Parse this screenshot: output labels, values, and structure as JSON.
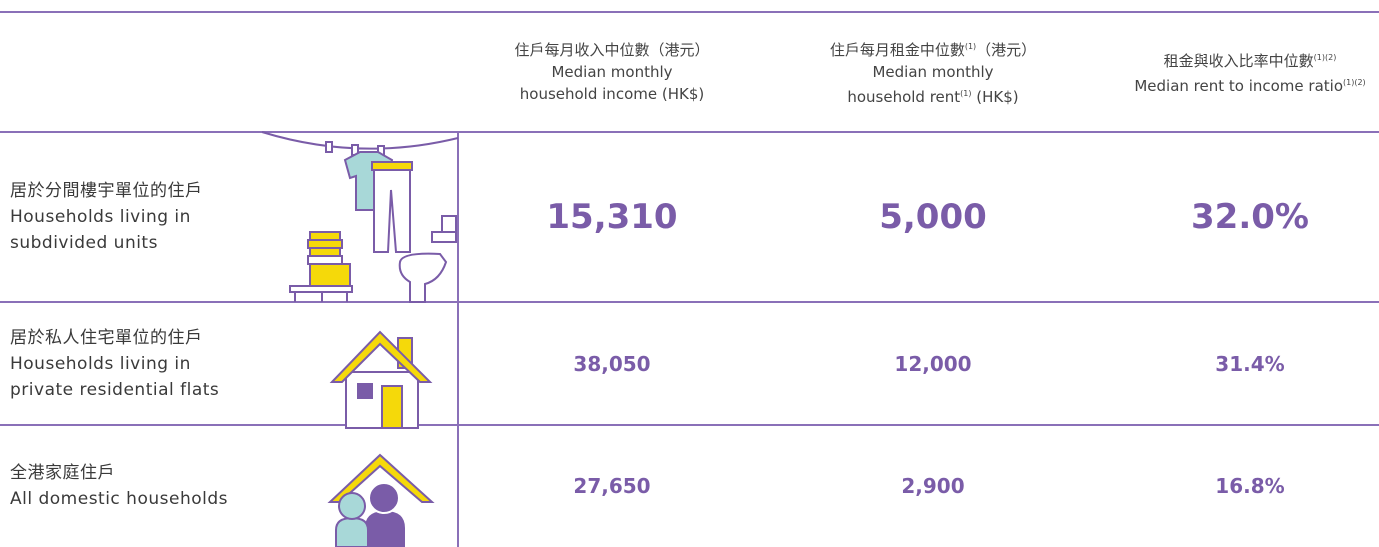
{
  "header": {
    "columns": [
      {
        "lines": [
          [
            {
              "text": "住戶每月收入中位數（港元）"
            }
          ],
          [
            {
              "text": "Median monthly"
            }
          ],
          [
            {
              "text": "household income (HK$)"
            }
          ]
        ]
      },
      {
        "lines": [
          [
            {
              "text": "住戶每月租金中位數"
            },
            {
              "text": "(1)",
              "sup": true
            },
            {
              "text": "（港元）"
            }
          ],
          [
            {
              "text": "Median monthly"
            }
          ],
          [
            {
              "text": "household rent"
            },
            {
              "text": "(1)",
              "sup": true
            },
            {
              "text": " (HK$)"
            }
          ]
        ]
      },
      {
        "lines": [
          [
            {
              "text": "租金與收入比率中位數"
            },
            {
              "text": "(1)(2)",
              "sup": true
            }
          ],
          [
            {
              "text": "Median rent to income ratio"
            },
            {
              "text": "(1)(2)",
              "sup": true
            }
          ]
        ]
      }
    ]
  },
  "rows": [
    {
      "lines": [
        "居於分間樓宇單位的住戶",
        "Households living in",
        "subdivided units"
      ],
      "values": [
        "15,310",
        "5,000",
        "32.0%"
      ],
      "highlight": true
    },
    {
      "lines": [
        "居於私人住宅單位的住戶",
        "Households living in",
        "private residential flats"
      ],
      "values": [
        "38,050",
        "12,000",
        "31.4%"
      ],
      "highlight": false
    },
    {
      "lines": [
        "全港家庭住戶",
        "All domestic households"
      ],
      "values": [
        "27,650",
        "2,900",
        "16.8%"
      ],
      "highlight": false
    }
  ]
}
